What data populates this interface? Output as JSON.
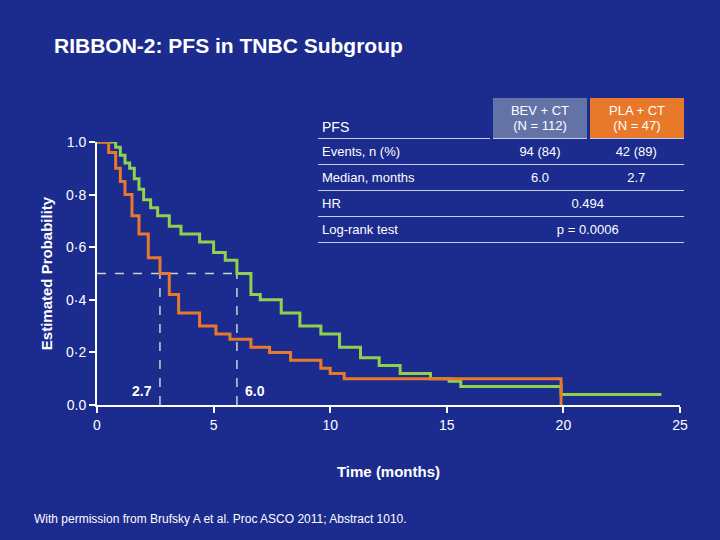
{
  "title": "RIBBON-2: PFS in TNBC Subgroup",
  "footnote": "With permission from Brufsky A et al. Proc ASCO 2011; Abstract 1010.",
  "chart_data": {
    "type": "step",
    "x_label": "Time (months)",
    "y_label": "Estimated Probability",
    "xlim": [
      0,
      25
    ],
    "xticks": [
      0,
      5,
      10,
      15,
      20,
      25
    ],
    "ylim": [
      0,
      1
    ],
    "yticks": [
      {
        "value": 0,
        "label": "0.0"
      },
      {
        "value": 0.2,
        "label": "0·2"
      },
      {
        "value": 0.4,
        "label": "0·4"
      },
      {
        "value": 0.6,
        "label": "0·6"
      },
      {
        "value": 0.8,
        "label": "0·8"
      },
      {
        "value": 1,
        "label": "1.0"
      }
    ],
    "grid": false,
    "series": [
      {
        "name": "BEV + CT",
        "n_label": "(N = 112)",
        "color": "#8fd14f",
        "x": [
          0,
          0.8,
          1.0,
          1.2,
          1.4,
          1.6,
          1.8,
          2.0,
          2.3,
          2.6,
          3.1,
          3.6,
          4.4,
          5.0,
          5.5,
          6.0,
          6.6,
          7.0,
          7.9,
          8.7,
          9.6,
          10.4,
          11.3,
          12.1,
          13.0,
          14.3,
          15.1,
          15.6,
          19.9,
          24.2
        ],
        "values": [
          1.0,
          0.98,
          0.95,
          0.92,
          0.9,
          0.86,
          0.82,
          0.78,
          0.75,
          0.72,
          0.68,
          0.65,
          0.62,
          0.58,
          0.55,
          0.5,
          0.42,
          0.4,
          0.35,
          0.3,
          0.27,
          0.22,
          0.18,
          0.15,
          0.12,
          0.1,
          0.09,
          0.07,
          0.04,
          0.04
        ]
      },
      {
        "name": "PLA + CT",
        "n_label": "(N = 47)",
        "color": "#e8792b",
        "x": [
          0,
          0.5,
          0.8,
          1.0,
          1.2,
          1.5,
          1.8,
          2.2,
          2.7,
          3.1,
          3.5,
          4.4,
          5.1,
          5.7,
          6.6,
          7.4,
          8.3,
          9.6,
          10.0,
          10.6,
          19.9
        ],
        "values": [
          1.0,
          0.96,
          0.9,
          0.85,
          0.8,
          0.72,
          0.65,
          0.56,
          0.5,
          0.42,
          0.35,
          0.3,
          0.27,
          0.25,
          0.22,
          0.2,
          0.17,
          0.14,
          0.12,
          0.1,
          0.0
        ]
      }
    ],
    "median_y": 0.5,
    "medians": [
      {
        "x": 2.7,
        "label": "2.7"
      },
      {
        "x": 6.0,
        "label": "6.0"
      }
    ],
    "table": {
      "header": "PFS",
      "rows": [
        {
          "label": "Events, n (%)",
          "cells": [
            "94 (84)",
            "42 (89)"
          ]
        },
        {
          "label": "Median, months",
          "cells": [
            "6.0",
            "2.7"
          ]
        },
        {
          "label": "HR",
          "span": "0.494"
        },
        {
          "label": "Log-rank test",
          "span": "p = 0.0006"
        }
      ]
    }
  }
}
